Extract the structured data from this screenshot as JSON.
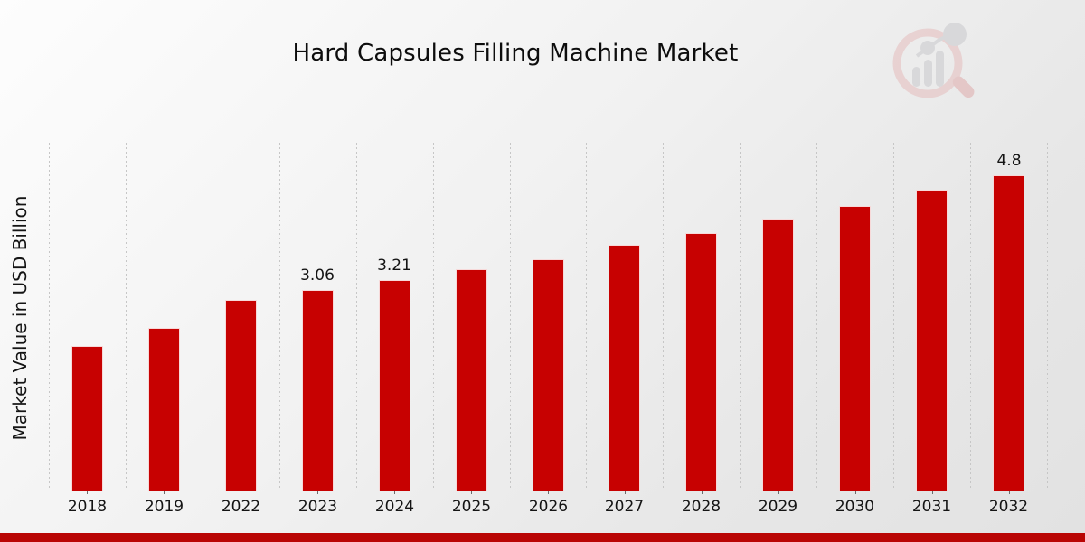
{
  "header": {
    "title": "Hard Capsules Filling Machine Market"
  },
  "watermark": {
    "icon": "magnifier-bar-chart-logo",
    "ring_color": "#e5bcbc",
    "bar_color": "#c9c9cd",
    "handle_color": "#dfabab"
  },
  "chart_data": {
    "type": "bar",
    "title": "Hard Capsules Filling Machine Market",
    "xlabel": "",
    "ylabel": "Market Value in USD Billion",
    "categories": [
      "2018",
      "2019",
      "2022",
      "2023",
      "2024",
      "2025",
      "2026",
      "2027",
      "2028",
      "2029",
      "2030",
      "2031",
      "2032"
    ],
    "values": [
      2.2,
      2.48,
      2.91,
      3.06,
      3.21,
      3.37,
      3.53,
      3.74,
      3.93,
      4.14,
      4.34,
      4.59,
      4.8
    ],
    "data_labels": {
      "2023": "3.06",
      "2024": "3.21",
      "2032": "4.8"
    },
    "bar_color": "#c70101",
    "grid": "vertical-dotted-lines-between-categories",
    "legend": "none",
    "ylim": [
      0,
      5.3
    ]
  },
  "footer": {
    "band_color": "#b90504"
  }
}
